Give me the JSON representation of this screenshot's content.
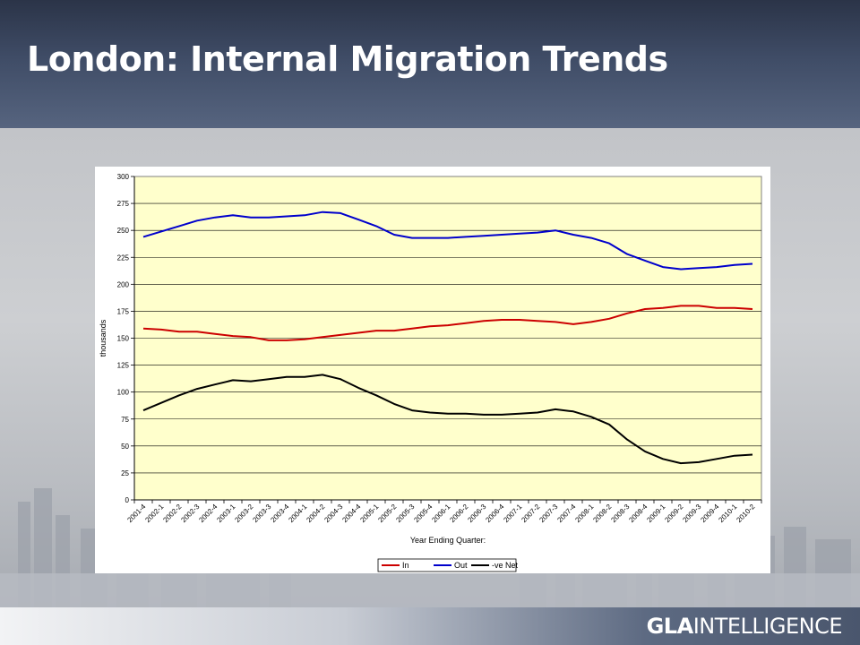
{
  "slide": {
    "title": "London: Internal Migration Trends",
    "brand_bold": "GLA",
    "brand_thin": "INTELLIGENCE"
  },
  "colors": {
    "plot_background": "#ffffcc",
    "in": "#cc0000",
    "out": "#0000cc",
    "net": "#000000"
  },
  "chart_data": {
    "type": "line",
    "title": "",
    "xlabel": "Year Ending Quarter:",
    "ylabel": "thousands",
    "ylim": [
      0,
      300
    ],
    "yticks": [
      0,
      25,
      50,
      75,
      100,
      125,
      150,
      175,
      200,
      225,
      250,
      275,
      300
    ],
    "grid": "horizontal",
    "legend_position": "bottom",
    "categories": [
      "2001-4",
      "2002-1",
      "2002-2",
      "2002-3",
      "2002-4",
      "2003-1",
      "2003-2",
      "2003-3",
      "2003-4",
      "2004-1",
      "2004-2",
      "2004-3",
      "2004-4",
      "2005-1",
      "2005-2",
      "2005-3",
      "2005-4",
      "2006-1",
      "2006-2",
      "2006-3",
      "2006-4",
      "2007-1",
      "2007-2",
      "2007-3",
      "2007-4",
      "2008-1",
      "2008-2",
      "2008-3",
      "2008-4",
      "2009-1",
      "2009-2",
      "2009-3",
      "2009-4",
      "2010-1",
      "2010-2"
    ],
    "series": [
      {
        "name": "In",
        "color": "#cc0000",
        "values": [
          159,
          158,
          156,
          156,
          154,
          152,
          151,
          148,
          148,
          149,
          151,
          153,
          155,
          157,
          157,
          159,
          161,
          162,
          164,
          166,
          167,
          167,
          166,
          165,
          163,
          165,
          168,
          173,
          177,
          178,
          180,
          180,
          178,
          178,
          177
        ]
      },
      {
        "name": "Out",
        "color": "#0000cc",
        "values": [
          244,
          249,
          254,
          259,
          262,
          264,
          262,
          262,
          263,
          264,
          267,
          266,
          260,
          254,
          246,
          243,
          243,
          243,
          244,
          245,
          246,
          247,
          248,
          250,
          246,
          243,
          238,
          228,
          222,
          216,
          214,
          215,
          216,
          218,
          219
        ]
      },
      {
        "name": "-ve Net",
        "color": "#000000",
        "values": [
          83,
          90,
          97,
          103,
          107,
          111,
          110,
          112,
          114,
          114,
          116,
          112,
          104,
          97,
          89,
          83,
          81,
          80,
          80,
          79,
          79,
          80,
          81,
          84,
          82,
          77,
          70,
          56,
          45,
          38,
          34,
          35,
          38,
          41,
          42
        ]
      }
    ]
  }
}
